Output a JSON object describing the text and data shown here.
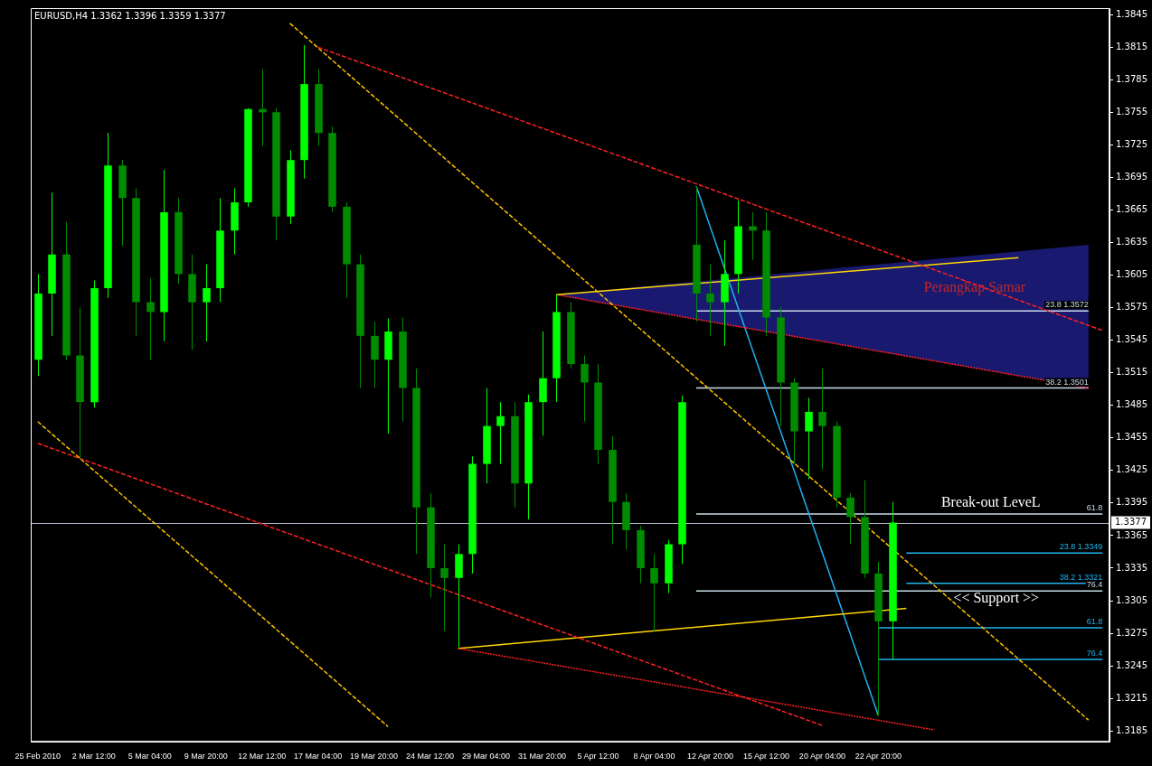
{
  "chart_data": {
    "type": "candlestick",
    "title": "EURUSD,H4 1.3362 1.3396 1.3359 1.3377",
    "colors": [
      "#00ff00",
      "#00ff00",
      "#008c00",
      "#008c00",
      "#00ff00",
      "#00ff00",
      "#008c00",
      "#008c00",
      "#008c00",
      "#00ff00",
      "#008c00",
      "#008c00",
      "#00ff00",
      "#00ff00",
      "#00ff00",
      "#00ff00",
      "#008c00",
      "#008c00",
      "#00ff00",
      "#00ff00",
      "#008c00",
      "#008c00",
      "#008c00",
      "#008c00",
      "#008c00",
      "#00ff00",
      "#008c00",
      "#008c00",
      "#008c00",
      "#008c00",
      "#00ff00",
      "#00ff00",
      "#00ff00",
      "#00ff00",
      "#008c00",
      "#00ff00",
      "#00ff00",
      "#00ff00",
      "#008c00",
      "#008c00",
      "#008c00",
      "#008c00",
      "#008c00",
      "#008c00",
      "#008c00",
      "#00ff00",
      "#00ff00",
      "#008c00",
      "#008c00",
      "#00ff00",
      "#00ff00",
      "#008c00",
      "#008c00",
      "#008c00",
      "#008c00",
      "#00ff00",
      "#008c00",
      "#008c00",
      "#008c00",
      "#008c00",
      "#008c00",
      "#00ff00",
      null,
      null,
      null,
      null,
      null,
      null,
      null,
      null,
      null,
      null,
      null,
      null,
      null,
      null,
      null
    ],
    "categories": [
      "25 Feb 2010",
      null,
      null,
      null,
      "2 Mar 12:00",
      null,
      null,
      null,
      "5 Mar 04:00",
      null,
      null,
      null,
      "9 Mar 20:00",
      null,
      null,
      null,
      "12 Mar 12:00",
      null,
      null,
      null,
      "17 Mar 04:00",
      null,
      null,
      null,
      "19 Mar 20:00",
      null,
      null,
      null,
      "24 Mar 12:00",
      null,
      null,
      null,
      "29 Mar 04:00",
      null,
      null,
      null,
      "31 Mar 20:00",
      null,
      null,
      null,
      "5 Apr 12:00",
      null,
      null,
      null,
      "8 Apr 04:00",
      null,
      null,
      null,
      "12 Apr 20:00",
      null,
      null,
      null,
      "15 Apr 12:00",
      null,
      null,
      null,
      "20 Apr 04:00",
      null,
      null,
      null,
      "22 Apr 20:00",
      null,
      null,
      null,
      null,
      null,
      null,
      null,
      null,
      null,
      null,
      null,
      null,
      null,
      null,
      null,
      null
    ],
    "ohlc": [
      [
        1.3527,
        1.3606,
        1.3512,
        1.3588
      ],
      [
        1.3588,
        1.3681,
        1.3549,
        1.3624
      ],
      [
        1.3624,
        1.3654,
        1.3527,
        1.3531
      ],
      [
        1.3531,
        1.3575,
        1.3435,
        1.3488
      ],
      [
        1.3488,
        1.36,
        1.3483,
        1.3593
      ],
      [
        1.3593,
        1.3736,
        1.3584,
        1.3706
      ],
      [
        1.3706,
        1.3711,
        1.3632,
        1.3676
      ],
      [
        1.3676,
        1.3685,
        1.3549,
        1.358
      ],
      [
        1.358,
        1.3602,
        1.3527,
        1.3571
      ],
      [
        1.3571,
        1.3702,
        1.3544,
        1.3663
      ],
      [
        1.3663,
        1.3676,
        1.3597,
        1.3606
      ],
      [
        1.3606,
        1.3624,
        1.3536,
        1.358
      ],
      [
        1.358,
        1.3615,
        1.3544,
        1.3593
      ],
      [
        1.3593,
        1.3676,
        1.358,
        1.3646
      ],
      [
        1.3646,
        1.3685,
        1.3624,
        1.3672
      ],
      [
        1.3672,
        1.3759,
        1.3668,
        1.3758
      ],
      [
        1.3758,
        1.3795,
        1.3724,
        1.3755
      ],
      [
        1.3755,
        1.3759,
        1.3637,
        1.3659
      ],
      [
        1.3659,
        1.372,
        1.3652,
        1.3711
      ],
      [
        1.3711,
        1.3817,
        1.3694,
        1.3781
      ],
      [
        1.3781,
        1.3795,
        1.3724,
        1.3736
      ],
      [
        1.3736,
        1.3742,
        1.3663,
        1.3668
      ],
      [
        1.3668,
        1.3672,
        1.3584,
        1.3615
      ],
      [
        1.3615,
        1.3624,
        1.3501,
        1.3549
      ],
      [
        1.3549,
        1.3562,
        1.3501,
        1.3527
      ],
      [
        1.3527,
        1.3565,
        1.3459,
        1.3553
      ],
      [
        1.3553,
        1.3566,
        1.347,
        1.3501
      ],
      [
        1.3501,
        1.3519,
        1.3348,
        1.3391
      ],
      [
        1.3391,
        1.3404,
        1.3308,
        1.3335
      ],
      [
        1.3335,
        1.3357,
        1.3277,
        1.3326
      ],
      [
        1.3326,
        1.3357,
        1.3262,
        1.3348
      ],
      [
        1.3348,
        1.3438,
        1.333,
        1.3431
      ],
      [
        1.3431,
        1.3501,
        1.3413,
        1.3466
      ],
      [
        1.3466,
        1.3488,
        1.3431,
        1.3475
      ],
      [
        1.3475,
        1.3488,
        1.3391,
        1.3413
      ],
      [
        1.3413,
        1.3495,
        1.338,
        1.3488
      ],
      [
        1.3488,
        1.3553,
        1.3457,
        1.351
      ],
      [
        1.351,
        1.3587,
        1.3488,
        1.3571
      ],
      [
        1.3571,
        1.358,
        1.3519,
        1.3523
      ],
      [
        1.3523,
        1.3531,
        1.347,
        1.3506
      ],
      [
        1.3506,
        1.3523,
        1.3431,
        1.3444
      ],
      [
        1.3444,
        1.3457,
        1.3357,
        1.3396
      ],
      [
        1.3396,
        1.3404,
        1.3352,
        1.337
      ],
      [
        1.337,
        1.3374,
        1.3321,
        1.3335
      ],
      [
        1.3335,
        1.3348,
        1.3277,
        1.3321
      ],
      [
        1.3321,
        1.3361,
        1.3312,
        1.3357
      ],
      [
        1.3357,
        1.3494,
        1.3339,
        1.3488
      ],
      [
        1.3633,
        1.3687,
        1.3562,
        1.3588
      ],
      [
        1.3588,
        1.3615,
        1.3549,
        1.358
      ],
      [
        1.358,
        1.3637,
        1.354,
        1.3606
      ],
      [
        1.3606,
        1.3674,
        1.3588,
        1.365
      ],
      [
        1.365,
        1.3663,
        1.3619,
        1.3646
      ],
      [
        1.3646,
        1.3663,
        1.3549,
        1.3566
      ],
      [
        1.3566,
        1.3576,
        1.3466,
        1.3506
      ],
      [
        1.3506,
        1.351,
        1.3431,
        1.3461
      ],
      [
        1.3461,
        1.3492,
        1.3417,
        1.3479
      ],
      [
        1.3479,
        1.3519,
        1.3426,
        1.3466
      ],
      [
        1.3466,
        1.347,
        1.3391,
        1.34
      ],
      [
        1.34,
        1.3404,
        1.3357,
        1.3382
      ],
      [
        1.3382,
        1.3416,
        1.3326,
        1.333
      ],
      [
        1.333,
        1.3341,
        1.3199,
        1.3286
      ],
      [
        1.3286,
        1.3396,
        1.3251,
        1.3377
      ],
      null,
      null,
      null,
      null,
      null,
      null,
      null,
      null,
      null,
      null,
      null,
      null,
      null,
      null,
      null
    ],
    "series": [
      {
        "type": "line",
        "color": "#ff2020",
        "line_style": "dashed",
        "values": [
          null,
          null,
          null,
          null,
          null,
          null,
          null,
          null,
          null,
          null,
          null,
          null,
          null,
          null,
          null,
          null,
          null,
          null,
          null,
          null,
          1.3815,
          null,
          null,
          null,
          null,
          null,
          null,
          null,
          null,
          null,
          null,
          null,
          null,
          null,
          null,
          null,
          null,
          null,
          null,
          null,
          null,
          null,
          null,
          null,
          null,
          null,
          null,
          null,
          null,
          null,
          null,
          null,
          null,
          null,
          null,
          null,
          null,
          null,
          null,
          null,
          null,
          null,
          null,
          null,
          null,
          null,
          null,
          null,
          null,
          null,
          null,
          null,
          null,
          null,
          null,
          null,
          1.3554
        ]
      },
      {
        "type": "line",
        "color": "#ff2020",
        "line_style": "dashed",
        "values": [
          1.345,
          null,
          null,
          null,
          null,
          null,
          null,
          null,
          null,
          null,
          null,
          null,
          null,
          null,
          null,
          null,
          null,
          null,
          null,
          null,
          null,
          null,
          null,
          null,
          null,
          null,
          null,
          null,
          null,
          null,
          null,
          null,
          null,
          null,
          null,
          null,
          null,
          null,
          null,
          null,
          null,
          null,
          null,
          null,
          null,
          null,
          null,
          null,
          null,
          null,
          null,
          null,
          null,
          null,
          null,
          null,
          1.319,
          null,
          null,
          null,
          null,
          null,
          null,
          null,
          null,
          null,
          null,
          null,
          null,
          null,
          null,
          null,
          null,
          null,
          null,
          null,
          null
        ]
      },
      {
        "type": "line",
        "color": "#ffc000",
        "line_style": "dashed",
        "values": [
          null,
          null,
          null,
          null,
          null,
          null,
          null,
          null,
          null,
          null,
          null,
          null,
          null,
          null,
          null,
          null,
          null,
          null,
          1.3837,
          null,
          null,
          null,
          null,
          null,
          null,
          null,
          null,
          null,
          null,
          null,
          null,
          null,
          null,
          null,
          null,
          null,
          null,
          null,
          null,
          null,
          null,
          null,
          null,
          null,
          null,
          null,
          null,
          null,
          null,
          null,
          null,
          null,
          null,
          null,
          null,
          null,
          null,
          null,
          null,
          null,
          null,
          null,
          null,
          null,
          null,
          null,
          null,
          null,
          null,
          null,
          null,
          null,
          null,
          null,
          null,
          1.3195,
          null
        ]
      },
      {
        "type": "line",
        "color": "#ffc000",
        "line_style": "dashed",
        "values": [
          1.347,
          null,
          null,
          null,
          null,
          null,
          null,
          null,
          null,
          null,
          null,
          null,
          null,
          null,
          null,
          null,
          null,
          null,
          null,
          null,
          null,
          null,
          null,
          null,
          null,
          1.3189,
          null,
          null,
          null,
          null,
          null,
          null,
          null,
          null,
          null,
          null,
          null,
          null,
          null,
          null,
          null,
          null,
          null,
          null,
          null,
          null,
          null,
          null,
          null,
          null,
          null,
          null,
          null,
          null,
          null,
          null,
          null,
          null,
          null,
          null,
          null,
          null,
          null,
          null,
          null,
          null,
          null,
          null,
          null,
          null,
          null,
          null,
          null,
          null,
          null,
          null,
          null
        ]
      },
      {
        "type": "line",
        "color": "#ff2020",
        "line_style": "dotted",
        "values": [
          null,
          null,
          null,
          null,
          null,
          null,
          null,
          null,
          null,
          null,
          null,
          null,
          null,
          null,
          null,
          null,
          null,
          null,
          null,
          null,
          null,
          null,
          null,
          null,
          null,
          null,
          null,
          null,
          null,
          null,
          1.3261,
          null,
          null,
          null,
          null,
          null,
          null,
          null,
          null,
          null,
          null,
          null,
          null,
          null,
          null,
          null,
          null,
          null,
          null,
          null,
          null,
          null,
          null,
          null,
          null,
          null,
          null,
          null,
          null,
          null,
          null,
          null,
          null,
          null,
          1.3186,
          null,
          null,
          null,
          null,
          null,
          null,
          null,
          null,
          null,
          null,
          null,
          null
        ]
      },
      {
        "type": "line",
        "color": "#ffd700",
        "line_style": "solid",
        "values": [
          null,
          null,
          null,
          null,
          null,
          null,
          null,
          null,
          null,
          null,
          null,
          null,
          null,
          null,
          null,
          null,
          null,
          null,
          null,
          null,
          null,
          null,
          null,
          null,
          null,
          null,
          null,
          null,
          null,
          null,
          1.3261,
          null,
          null,
          null,
          null,
          null,
          null,
          null,
          null,
          null,
          null,
          null,
          null,
          null,
          null,
          null,
          null,
          null,
          null,
          null,
          null,
          null,
          null,
          null,
          null,
          null,
          null,
          null,
          null,
          null,
          null,
          null,
          1.3298,
          null,
          null,
          null,
          null,
          null,
          null,
          null,
          null,
          null,
          null,
          null,
          null,
          null,
          null
        ]
      },
      {
        "type": "line",
        "color": "#ffd700",
        "line_style": "solid",
        "values": [
          null,
          null,
          null,
          null,
          null,
          null,
          null,
          null,
          null,
          null,
          null,
          null,
          null,
          null,
          null,
          null,
          null,
          null,
          null,
          null,
          null,
          null,
          null,
          null,
          null,
          null,
          null,
          null,
          null,
          null,
          null,
          null,
          null,
          null,
          null,
          null,
          null,
          1.3587,
          null,
          null,
          null,
          null,
          null,
          null,
          null,
          null,
          null,
          null,
          null,
          null,
          null,
          null,
          null,
          null,
          null,
          null,
          null,
          null,
          null,
          null,
          null,
          null,
          null,
          null,
          null,
          null,
          null,
          null,
          null,
          null,
          1.3621,
          null,
          null,
          null,
          null,
          null,
          null
        ]
      },
      {
        "type": "line",
        "color": "#ff2020",
        "line_style": "dotted",
        "values": [
          null,
          null,
          null,
          null,
          null,
          null,
          null,
          null,
          null,
          null,
          null,
          null,
          null,
          null,
          null,
          null,
          null,
          null,
          null,
          null,
          null,
          null,
          null,
          null,
          null,
          null,
          null,
          null,
          null,
          null,
          null,
          null,
          null,
          null,
          null,
          null,
          null,
          1.3587,
          null,
          null,
          null,
          null,
          null,
          null,
          null,
          null,
          null,
          null,
          null,
          null,
          null,
          null,
          null,
          null,
          null,
          null,
          null,
          null,
          null,
          null,
          null,
          null,
          null,
          null,
          null,
          null,
          null,
          null,
          null,
          null,
          null,
          null,
          null,
          null,
          null,
          1.3501,
          null
        ],
        "upper": [
          null,
          null,
          null,
          null,
          null,
          null,
          null,
          null,
          null,
          null,
          null,
          null,
          null,
          null,
          null,
          null,
          null,
          null,
          null,
          null,
          null,
          null,
          null,
          null,
          null,
          null,
          null,
          null,
          null,
          null,
          null,
          null,
          null,
          null,
          null,
          null,
          null,
          1.3587,
          null,
          null,
          null,
          null,
          null,
          null,
          null,
          null,
          null,
          null,
          null,
          null,
          null,
          null,
          null,
          null,
          null,
          null,
          null,
          null,
          null,
          null,
          null,
          null,
          null,
          null,
          null,
          null,
          null,
          null,
          null,
          null,
          null,
          null,
          null,
          null,
          null,
          1.3633,
          null
        ],
        "lower": [
          null,
          null,
          null,
          null,
          null,
          null,
          null,
          null,
          null,
          null,
          null,
          null,
          null,
          null,
          null,
          null,
          null,
          null,
          null,
          null,
          null,
          null,
          null,
          null,
          null,
          null,
          null,
          null,
          null,
          null,
          null,
          null,
          null,
          null,
          null,
          null,
          null,
          1.3587,
          null,
          null,
          null,
          null,
          null,
          null,
          null,
          null,
          null,
          null,
          null,
          null,
          null,
          null,
          null,
          null,
          null,
          null,
          null,
          null,
          null,
          null,
          null,
          null,
          null,
          null,
          null,
          null,
          null,
          null,
          null,
          null,
          null,
          null,
          null,
          null,
          null,
          1.3501,
          null
        ]
      },
      {
        "type": "line",
        "color": "#20b0f0",
        "line_style": "solid",
        "values": [
          null,
          null,
          null,
          null,
          null,
          null,
          null,
          null,
          null,
          null,
          null,
          null,
          null,
          null,
          null,
          null,
          null,
          null,
          null,
          null,
          null,
          null,
          null,
          null,
          null,
          null,
          null,
          null,
          null,
          null,
          null,
          null,
          null,
          null,
          null,
          null,
          null,
          null,
          null,
          null,
          null,
          null,
          null,
          null,
          null,
          null,
          null,
          1.3687,
          null,
          null,
          null,
          null,
          null,
          null,
          null,
          null,
          null,
          null,
          null,
          null,
          1.3199,
          null,
          null,
          null,
          null,
          null,
          null,
          null,
          null,
          null,
          null,
          null,
          null,
          null,
          null,
          null,
          null
        ]
      },
      {
        "type": "line",
        "name": "23.8 1.3572",
        "color": "#c8dce8",
        "line_style": "solid",
        "values": [
          null,
          null,
          null,
          null,
          null,
          null,
          null,
          null,
          null,
          null,
          null,
          null,
          null,
          null,
          null,
          null,
          null,
          null,
          null,
          null,
          null,
          null,
          null,
          null,
          null,
          null,
          null,
          null,
          null,
          null,
          null,
          null,
          null,
          null,
          null,
          null,
          null,
          null,
          null,
          null,
          null,
          null,
          null,
          null,
          null,
          null,
          null,
          1.3572,
          null,
          null,
          null,
          null,
          null,
          null,
          null,
          null,
          null,
          null,
          null,
          null,
          null,
          null,
          null,
          null,
          null,
          null,
          null,
          null,
          null,
          null,
          null,
          null,
          null,
          null,
          null,
          1.3572,
          null
        ]
      },
      {
        "type": "line",
        "name": "38.2 1.3501",
        "color": "#c8dce8",
        "line_style": "solid",
        "values": [
          null,
          null,
          null,
          null,
          null,
          null,
          null,
          null,
          null,
          null,
          null,
          null,
          null,
          null,
          null,
          null,
          null,
          null,
          null,
          null,
          null,
          null,
          null,
          null,
          null,
          null,
          null,
          null,
          null,
          null,
          null,
          null,
          null,
          null,
          null,
          null,
          null,
          null,
          null,
          null,
          null,
          null,
          null,
          null,
          null,
          null,
          null,
          1.3501,
          null,
          null,
          null,
          null,
          null,
          null,
          null,
          null,
          null,
          null,
          null,
          null,
          null,
          null,
          null,
          null,
          null,
          null,
          null,
          null,
          null,
          null,
          null,
          null,
          null,
          null,
          null,
          1.3501,
          null
        ]
      },
      {
        "type": "line",
        "name": "61.8",
        "color": "#c8dce8",
        "line_style": "solid",
        "values": [
          null,
          null,
          null,
          null,
          null,
          null,
          null,
          null,
          null,
          null,
          null,
          null,
          null,
          null,
          null,
          null,
          null,
          null,
          null,
          null,
          null,
          null,
          null,
          null,
          null,
          null,
          null,
          null,
          null,
          null,
          null,
          null,
          null,
          null,
          null,
          null,
          null,
          null,
          null,
          null,
          null,
          null,
          null,
          null,
          null,
          null,
          null,
          1.3385,
          null,
          null,
          null,
          null,
          null,
          null,
          null,
          null,
          null,
          null,
          null,
          null,
          null,
          null,
          null,
          null,
          null,
          null,
          null,
          null,
          null,
          null,
          null,
          null,
          null,
          null,
          null,
          null,
          1.3385
        ]
      },
      {
        "type": "line",
        "name": "76.4",
        "color": "#c8dce8",
        "line_style": "solid",
        "values": [
          null,
          null,
          null,
          null,
          null,
          null,
          null,
          null,
          null,
          null,
          null,
          null,
          null,
          null,
          null,
          null,
          null,
          null,
          null,
          null,
          null,
          null,
          null,
          null,
          null,
          null,
          null,
          null,
          null,
          null,
          null,
          null,
          null,
          null,
          null,
          null,
          null,
          null,
          null,
          null,
          null,
          null,
          null,
          null,
          null,
          null,
          null,
          1.3314,
          null,
          null,
          null,
          null,
          null,
          null,
          null,
          null,
          null,
          null,
          null,
          null,
          null,
          null,
          null,
          null,
          null,
          null,
          null,
          null,
          null,
          null,
          null,
          null,
          null,
          null,
          null,
          null,
          1.3314
        ]
      },
      {
        "type": "line",
        "name": "23.8 1.3349",
        "color": "#22b4f0",
        "line_style": "solid",
        "values": [
          null,
          null,
          null,
          null,
          null,
          null,
          null,
          null,
          null,
          null,
          null,
          null,
          null,
          null,
          null,
          null,
          null,
          null,
          null,
          null,
          null,
          null,
          null,
          null,
          null,
          null,
          null,
          null,
          null,
          null,
          null,
          null,
          null,
          null,
          null,
          null,
          null,
          null,
          null,
          null,
          null,
          null,
          null,
          null,
          null,
          null,
          null,
          null,
          null,
          null,
          null,
          null,
          null,
          null,
          null,
          null,
          null,
          null,
          null,
          null,
          null,
          null,
          1.3349,
          null,
          null,
          null,
          null,
          null,
          null,
          null,
          null,
          null,
          null,
          null,
          null,
          null,
          1.3349
        ]
      },
      {
        "type": "line",
        "name": "38.2 1.3321",
        "color": "#22b4f0",
        "line_style": "solid",
        "values": [
          null,
          null,
          null,
          null,
          null,
          null,
          null,
          null,
          null,
          null,
          null,
          null,
          null,
          null,
          null,
          null,
          null,
          null,
          null,
          null,
          null,
          null,
          null,
          null,
          null,
          null,
          null,
          null,
          null,
          null,
          null,
          null,
          null,
          null,
          null,
          null,
          null,
          null,
          null,
          null,
          null,
          null,
          null,
          null,
          null,
          null,
          null,
          null,
          null,
          null,
          null,
          null,
          null,
          null,
          null,
          null,
          null,
          null,
          null,
          null,
          null,
          null,
          1.3321,
          null,
          null,
          null,
          null,
          null,
          null,
          null,
          null,
          null,
          null,
          null,
          null,
          null,
          1.3321
        ]
      },
      {
        "type": "line",
        "name": "61.8",
        "color": "#22b4f0",
        "line_style": "solid",
        "values": [
          null,
          null,
          null,
          null,
          null,
          null,
          null,
          null,
          null,
          null,
          null,
          null,
          null,
          null,
          null,
          null,
          null,
          null,
          null,
          null,
          null,
          null,
          null,
          null,
          null,
          null,
          null,
          null,
          null,
          null,
          null,
          null,
          null,
          null,
          null,
          null,
          null,
          null,
          null,
          null,
          null,
          null,
          null,
          null,
          null,
          null,
          null,
          null,
          null,
          null,
          null,
          null,
          null,
          null,
          null,
          null,
          null,
          null,
          null,
          null,
          1.328,
          null,
          null,
          null,
          null,
          null,
          null,
          null,
          null,
          null,
          null,
          null,
          null,
          null,
          null,
          null,
          1.328
        ]
      },
      {
        "type": "line",
        "name": "76.4",
        "color": "#22b4f0",
        "line_style": "solid",
        "values": [
          null,
          null,
          null,
          null,
          null,
          null,
          null,
          null,
          null,
          null,
          null,
          null,
          null,
          null,
          null,
          null,
          null,
          null,
          null,
          null,
          null,
          null,
          null,
          null,
          null,
          null,
          null,
          null,
          null,
          null,
          null,
          null,
          null,
          null,
          null,
          null,
          null,
          null,
          null,
          null,
          null,
          null,
          null,
          null,
          null,
          null,
          null,
          null,
          null,
          null,
          null,
          null,
          null,
          null,
          null,
          null,
          null,
          null,
          null,
          null,
          1.3251,
          null,
          null,
          null,
          null,
          null,
          null,
          null,
          null,
          null,
          null,
          null,
          null,
          null,
          null,
          null,
          1.3251
        ]
      }
    ],
    "ylim": [
      1.3175,
      1.3851
    ],
    "yticks": [
      1.3185,
      1.3215,
      1.3245,
      1.3275,
      1.3305,
      1.3335,
      1.3365,
      1.3395,
      1.3425,
      1.3455,
      1.3485,
      1.3515,
      1.3545,
      1.3575,
      1.3605,
      1.3635,
      1.3665,
      1.3695,
      1.3725,
      1.3755,
      1.3785,
      1.3815,
      1.3845
    ],
    "ref_lines": [
      {
        "axis": "y",
        "value": 1.3377,
        "label": "1.3377",
        "color": "#b0b8c8"
      }
    ],
    "annotations": [
      "Perangkap Samar",
      "Break-out LeveL",
      "<< Support >>"
    ]
  }
}
